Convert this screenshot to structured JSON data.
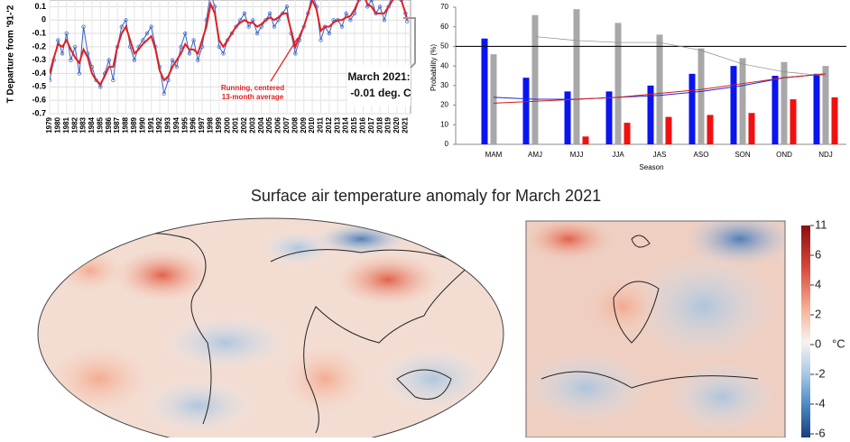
{
  "chart_data": [
    {
      "type": "line",
      "ylabel": "T Departure from '91-'2",
      "ylim": [
        -0.7,
        0.15
      ],
      "yticks": [
        0.1,
        0,
        -0.1,
        -0.2,
        -0.3,
        -0.4,
        -0.5,
        -0.6,
        -0.7
      ],
      "xlim": [
        1979,
        2021.6
      ],
      "xticks": [
        1979,
        1980,
        1981,
        1982,
        1983,
        1984,
        1985,
        1986,
        1987,
        1988,
        1989,
        1990,
        1991,
        1992,
        1993,
        1994,
        1995,
        1996,
        1997,
        1998,
        1999,
        2000,
        2001,
        2002,
        2003,
        2004,
        2005,
        2006,
        2007,
        2008,
        2009,
        2010,
        2011,
        2012,
        2013,
        2014,
        2015,
        2016,
        2017,
        2018,
        2019,
        2020,
        2021
      ],
      "grid": true,
      "x": [
        1979,
        1979.5,
        1980,
        1980.5,
        1981,
        1981.5,
        1982,
        1982.5,
        1983,
        1983.5,
        1984,
        1984.5,
        1985,
        1985.5,
        1986,
        1986.5,
        1987,
        1987.5,
        1988,
        1988.5,
        1989,
        1989.5,
        1990,
        1990.5,
        1991,
        1991.5,
        1992,
        1992.5,
        1993,
        1993.5,
        1994,
        1994.5,
        1995,
        1995.5,
        1996,
        1996.5,
        1997,
        1997.5,
        1998,
        1998.5,
        1999,
        1999.5,
        2000,
        2000.5,
        2001,
        2001.5,
        2002,
        2002.5,
        2003,
        2003.5,
        2004,
        2004.5,
        2005,
        2005.5,
        2006,
        2006.5,
        2007,
        2007.5,
        2008,
        2008.5,
        2009,
        2009.5,
        2010,
        2010.5,
        2011,
        2011.5,
        2012,
        2012.5,
        2013,
        2013.5,
        2014,
        2014.5,
        2015,
        2015.5,
        2016,
        2016.5,
        2017,
        2017.5,
        2018,
        2018.5,
        2019,
        2019.5,
        2020,
        2020.5,
        2021,
        2021.2
      ],
      "series": [
        {
          "color": "#3a5fc8",
          "values": [
            -0.45,
            -0.3,
            -0.15,
            -0.25,
            -0.1,
            -0.3,
            -0.2,
            -0.4,
            -0.05,
            -0.25,
            -0.35,
            -0.45,
            -0.5,
            -0.4,
            -0.3,
            -0.45,
            -0.2,
            -0.05,
            0.0,
            -0.2,
            -0.3,
            -0.2,
            -0.15,
            -0.1,
            -0.05,
            -0.2,
            -0.35,
            -0.55,
            -0.45,
            -0.3,
            -0.35,
            -0.2,
            -0.1,
            -0.25,
            -0.15,
            -0.3,
            -0.2,
            0.0,
            0.2,
            0.1,
            -0.2,
            -0.25,
            -0.15,
            -0.1,
            -0.05,
            0.0,
            0.05,
            -0.05,
            0.0,
            -0.1,
            -0.05,
            0.0,
            0.05,
            -0.05,
            0.0,
            0.05,
            0.1,
            -0.1,
            -0.25,
            -0.15,
            -0.05,
            0.05,
            0.2,
            0.1,
            -0.15,
            -0.05,
            -0.1,
            0.0,
            0.0,
            -0.05,
            0.05,
            0.0,
            0.05,
            0.15,
            0.3,
            0.1,
            0.15,
            0.05,
            0.1,
            0.0,
            0.1,
            0.2,
            0.3,
            0.15,
            0.05,
            -0.01
          ]
        },
        {
          "color": "#e02020",
          "values": [
            -0.4,
            -0.28,
            -0.18,
            -0.2,
            -0.15,
            -0.22,
            -0.28,
            -0.32,
            -0.22,
            -0.28,
            -0.4,
            -0.45,
            -0.48,
            -0.42,
            -0.35,
            -0.35,
            -0.2,
            -0.1,
            -0.05,
            -0.15,
            -0.25,
            -0.22,
            -0.18,
            -0.15,
            -0.12,
            -0.22,
            -0.38,
            -0.45,
            -0.42,
            -0.35,
            -0.3,
            -0.25,
            -0.18,
            -0.22,
            -0.22,
            -0.25,
            -0.15,
            -0.05,
            0.12,
            0.05,
            -0.15,
            -0.2,
            -0.15,
            -0.1,
            -0.05,
            -0.02,
            0.0,
            -0.02,
            -0.02,
            -0.05,
            -0.03,
            0.0,
            0.02,
            0.0,
            0.02,
            0.05,
            0.05,
            -0.08,
            -0.2,
            -0.12,
            -0.05,
            0.05,
            0.15,
            0.08,
            -0.08,
            -0.05,
            -0.05,
            -0.02,
            0.0,
            0.0,
            0.02,
            0.03,
            0.08,
            0.15,
            0.2,
            0.12,
            0.1,
            0.05,
            0.05,
            0.05,
            0.1,
            0.15,
            0.2,
            0.15,
            0.05,
            0.0
          ]
        }
      ],
      "annotations": [
        "Running, centered",
        "13-month average",
        "March 2021:",
        "-0.01 deg. C"
      ]
    },
    {
      "type": "bar",
      "ylabel": "Probability (%)",
      "xlabel": "Season",
      "categories": [
        "MAM",
        "AMJ",
        "MJJ",
        "JJA",
        "JAS",
        "ASO",
        "SON",
        "OND",
        "NDJ"
      ],
      "ylim": [
        0,
        70
      ],
      "yticks": [
        0,
        10,
        20,
        30,
        40,
        50,
        60,
        70
      ],
      "reference_line": 50,
      "series": [
        {
          "color": "#0a14f0",
          "values": [
            54,
            34,
            27,
            27,
            30,
            36,
            40,
            35,
            36
          ]
        },
        {
          "color": "#a8a8a8",
          "values": [
            46,
            66,
            69,
            62,
            56,
            49,
            44,
            42,
            40
          ]
        },
        {
          "color": "#f01010",
          "values": [
            0,
            0,
            4,
            11,
            14,
            15,
            16,
            23,
            24
          ]
        }
      ],
      "lines": [
        {
          "color": "#1a2ad8",
          "values": [
            24,
            23,
            23,
            24,
            25,
            27,
            30,
            34,
            36
          ]
        },
        {
          "color": "#d81a1a",
          "values": [
            21,
            22,
            23,
            24,
            26,
            28,
            31,
            34,
            36
          ]
        },
        {
          "color": "#888888",
          "values": [
            null,
            55,
            53,
            52,
            52,
            48,
            41,
            37,
            35
          ]
        }
      ]
    },
    {
      "type": "map",
      "title": "Surface air temperature anomaly for March 2021",
      "colorbar_ticks": [
        11,
        6,
        4,
        2,
        0,
        -2,
        -4,
        -6
      ],
      "unit": "°C"
    }
  ]
}
